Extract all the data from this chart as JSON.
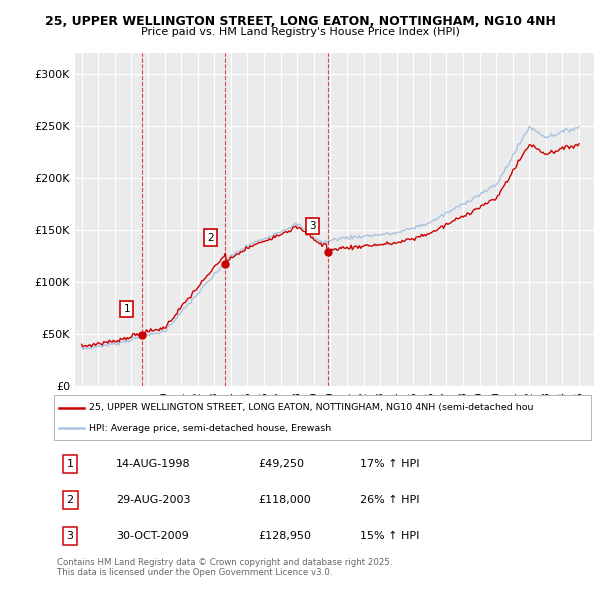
{
  "title_line1": "25, UPPER WELLINGTON STREET, LONG EATON, NOTTINGHAM, NG10 4NH",
  "title_line2": "Price paid vs. HM Land Registry's House Price Index (HPI)",
  "background_color": "#ffffff",
  "plot_bg_color": "#ebebeb",
  "grid_color": "#ffffff",
  "red_line_color": "#cc0000",
  "blue_line_color": "#aac4e0",
  "vline_color": "#cc0000",
  "transactions": [
    {
      "num": "1",
      "date": "14-AUG-1998",
      "price": "£49,250",
      "hpi": "17% ↑ HPI",
      "year": 1998.625,
      "value": 49250
    },
    {
      "num": "2",
      "date": "29-AUG-2003",
      "price": "£118,000",
      "hpi": "26% ↑ HPI",
      "year": 2003.667,
      "value": 118000
    },
    {
      "num": "3",
      "date": "30-OCT-2009",
      "price": "£128,950",
      "hpi": "15% ↑ HPI",
      "year": 2009.833,
      "value": 128950
    }
  ],
  "legend_line1": "25, UPPER WELLINGTON STREET, LONG EATON, NOTTINGHAM, NG10 4NH (semi-detached hou",
  "legend_line2": "HPI: Average price, semi-detached house, Erewash",
  "footnote": "Contains HM Land Registry data © Crown copyright and database right 2025.\nThis data is licensed under the Open Government Licence v3.0.",
  "ylim": [
    0,
    320000
  ],
  "yticks": [
    0,
    50000,
    100000,
    150000,
    200000,
    250000,
    300000
  ],
  "ytick_labels": [
    "£0",
    "£50K",
    "£100K",
    "£150K",
    "£200K",
    "£250K",
    "£300K"
  ],
  "xlim_left": 1994.6,
  "xlim_right": 2025.9
}
